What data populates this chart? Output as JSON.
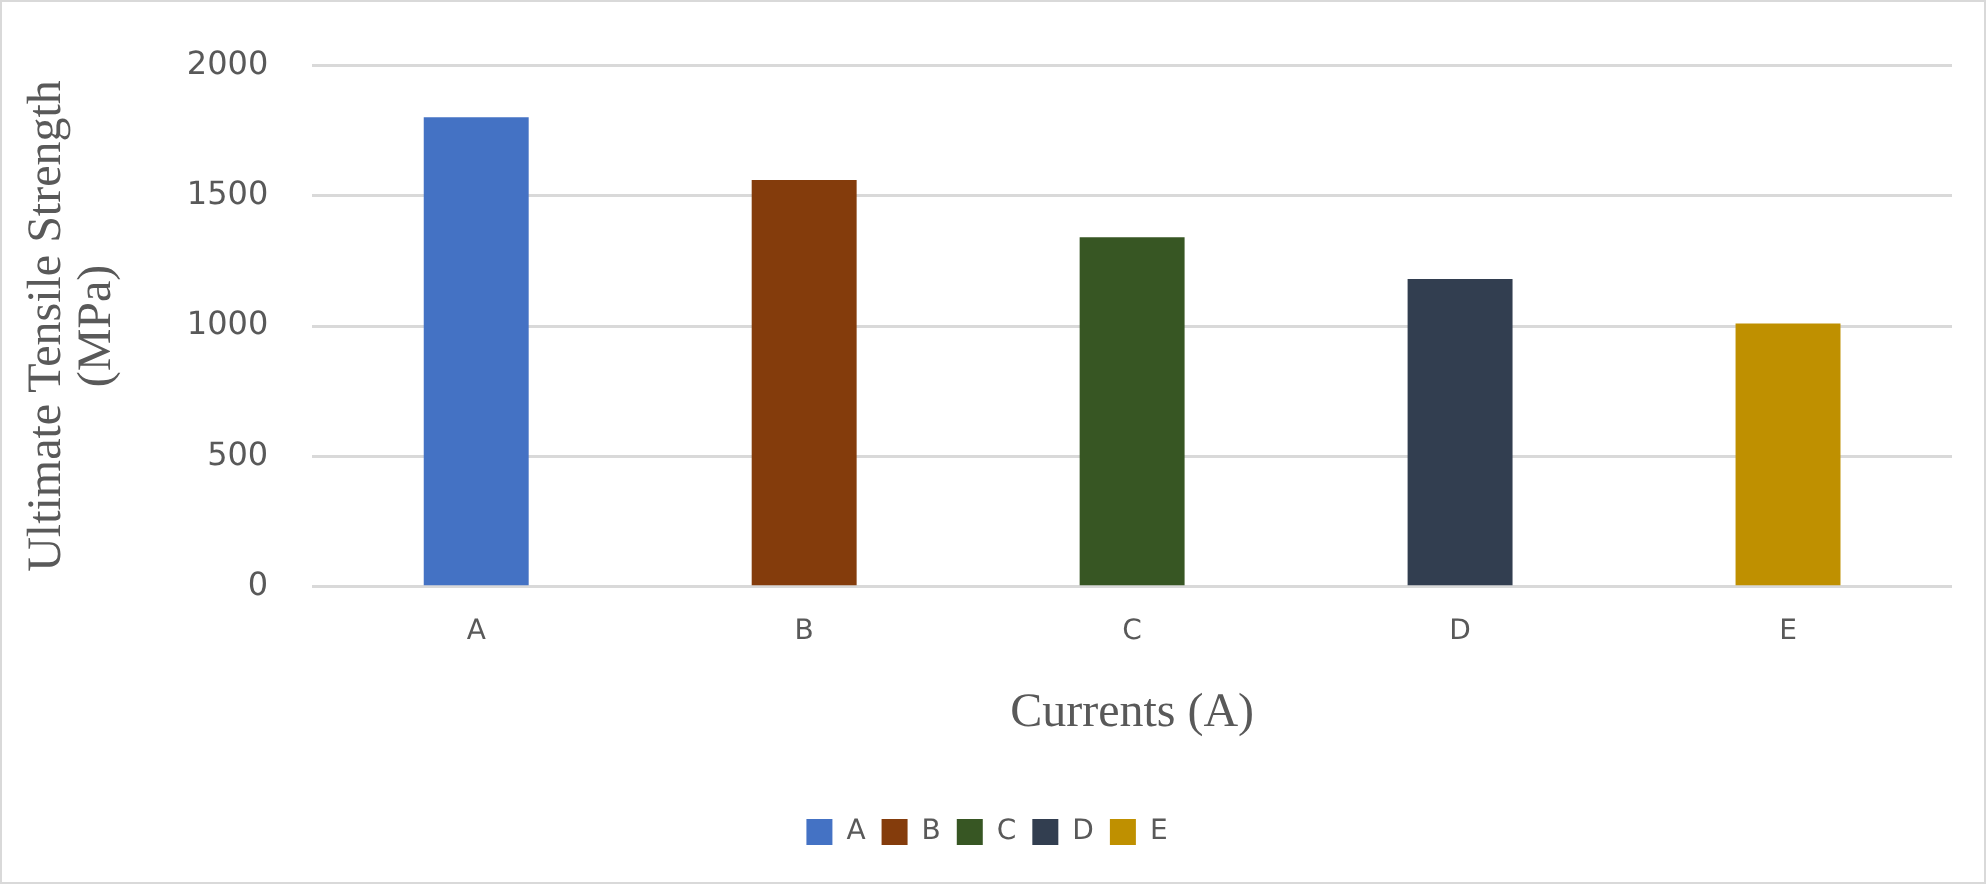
{
  "chart_data": {
    "type": "bar",
    "xlabel": "Currents (A)",
    "ylabel": "Ultimate Tensile Strength (MPa)",
    "categories": [
      "A",
      "B",
      "C",
      "D",
      "E"
    ],
    "series": [
      {
        "name": "A",
        "color": "#4472c4",
        "values": [
          1800,
          null,
          null,
          null,
          null
        ]
      },
      {
        "name": "B",
        "color": "#843c0c",
        "values": [
          null,
          1560,
          null,
          null,
          null
        ]
      },
      {
        "name": "C",
        "color": "#375623",
        "values": [
          null,
          null,
          1340,
          null,
          null
        ]
      },
      {
        "name": "D",
        "color": "#323e50",
        "values": [
          null,
          null,
          null,
          1180,
          null
        ]
      },
      {
        "name": "E",
        "color": "#bf9000",
        "values": [
          null,
          null,
          null,
          null,
          1010
        ]
      }
    ],
    "ylim": [
      0,
      2000
    ],
    "yticks": [
      0,
      500,
      1000,
      1500,
      2000
    ],
    "grid": "y",
    "legend": "bottom"
  }
}
